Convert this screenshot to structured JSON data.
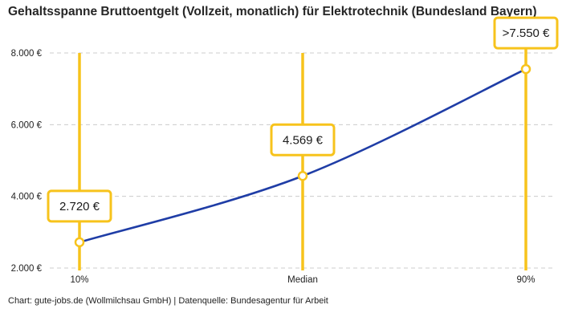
{
  "chart_data": {
    "type": "line",
    "title": "Gehaltsspanne Bruttoentgelt (Vollzeit, monatlich) für Elektrotechnik (Bundesland Bayern)",
    "categories": [
      "10%",
      "Median",
      "90%"
    ],
    "values": [
      2720,
      4569,
      7550
    ],
    "point_labels": [
      "2.720 €",
      "4.569 €",
      ">7.550 €"
    ],
    "xlabel": "",
    "ylabel": "",
    "ylim": [
      2000,
      8000
    ],
    "y_ticks": [
      2000,
      4000,
      6000,
      8000
    ],
    "y_tick_labels": [
      "2.000 €",
      "4.000 €",
      "6.000 €",
      "8.000 €"
    ],
    "grid": "horizontal-dashed",
    "legend": "none",
    "marker": "open-circle",
    "colors": {
      "line": "#1f3da6",
      "accent": "#f7c31c",
      "grid": "#cccccc",
      "marker_fill": "#ffffff",
      "label_text": "#1a1a1a",
      "axis_text": "#222222"
    }
  },
  "footer": {
    "text": "Chart: gute-jobs.de (Wollmilchsau GmbH) | Datenquelle: Bundesagentur für Arbeit"
  }
}
